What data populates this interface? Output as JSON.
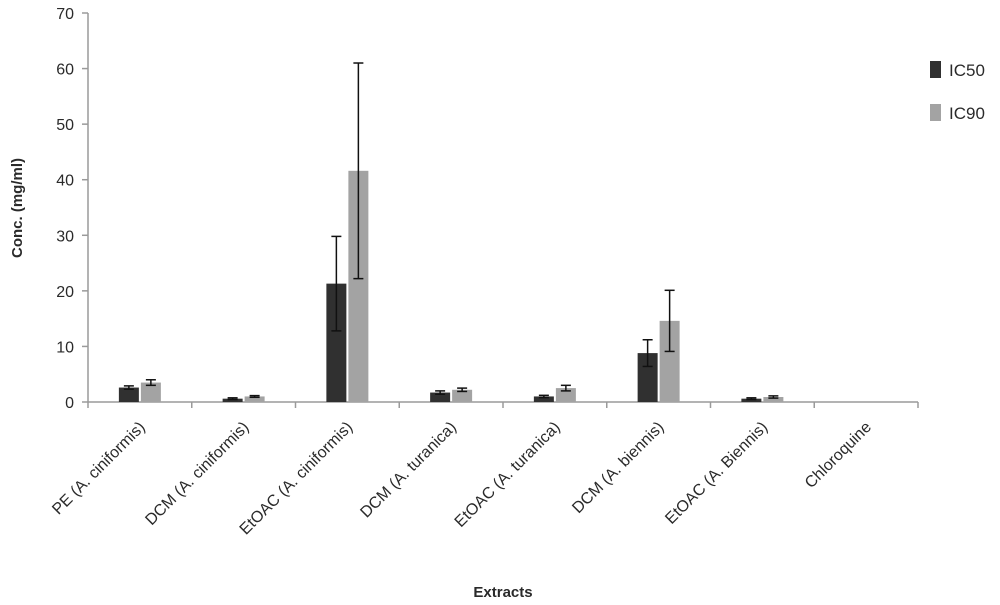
{
  "chart_data": {
    "type": "bar",
    "categories": [
      "PE (A. ciniformis)",
      "DCM (A. ciniformis)",
      "EtOAC (A. ciniformis)",
      "DCM (A. turanica)",
      "EtOAC (A. turanica)",
      "DCM (A. biennis)",
      "EtOAC (A. Biennis)",
      "Chloroquine"
    ],
    "series": [
      {
        "name": "IC50",
        "values": [
          2.6,
          0.6,
          21.3,
          1.7,
          1.0,
          8.8,
          0.6,
          0
        ],
        "errors": [
          0.3,
          0.15,
          8.5,
          0.3,
          0.2,
          2.4,
          0.15,
          0
        ],
        "color": "#303030"
      },
      {
        "name": "IC90",
        "values": [
          3.5,
          1.0,
          41.6,
          2.2,
          2.5,
          14.6,
          0.9,
          0
        ],
        "errors": [
          0.5,
          0.15,
          19.4,
          0.3,
          0.5,
          5.5,
          0.2,
          0
        ],
        "color": "#a3a3a3"
      }
    ],
    "xlabel": "Extracts",
    "ylabel": "Conc. (mg/ml)",
    "ylim": [
      0,
      70
    ],
    "yticks": [
      0,
      10,
      20,
      30,
      40,
      50,
      60,
      70
    ],
    "grid": false,
    "legend": "right"
  }
}
